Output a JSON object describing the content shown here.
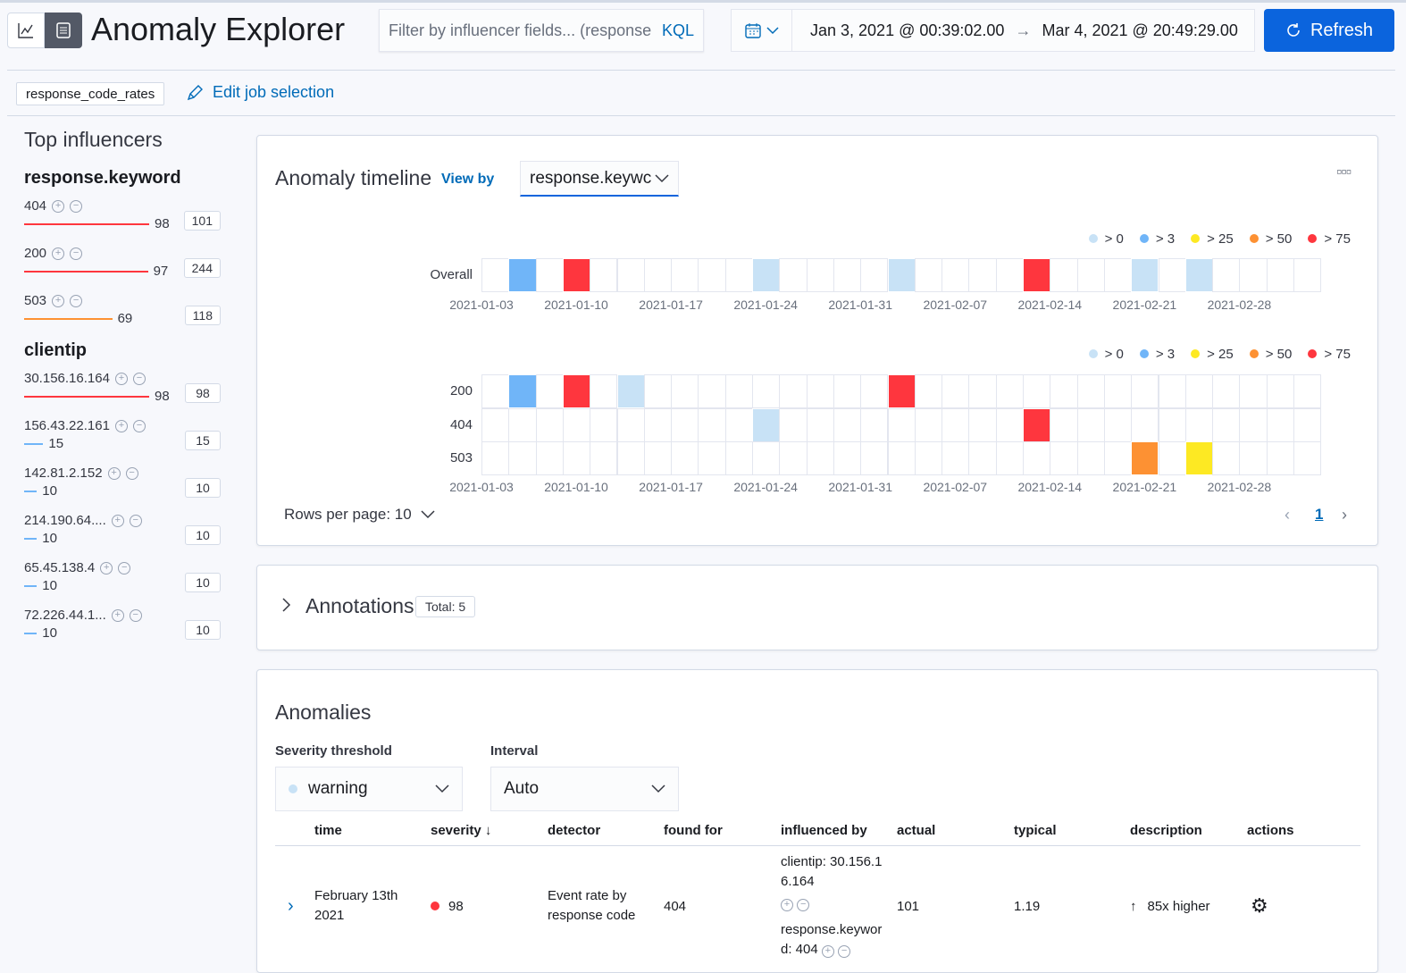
{
  "header": {
    "title": "Anomaly Explorer",
    "view_icons": [
      "single-metric-viewer-icon",
      "anomaly-explorer-icon"
    ],
    "filter_placeholder": "Filter by influencer fields... (response",
    "kql": "KQL",
    "date_start": "Jan 3, 2021 @ 00:39:02.00",
    "date_arrow": "→",
    "date_end": "Mar 4, 2021 @ 20:49:29.00",
    "refresh": "Refresh"
  },
  "job": {
    "id": "response_code_rates",
    "edit": "Edit job selection"
  },
  "influencers": {
    "title": "Top influencers",
    "groups": [
      {
        "field": "response.keyword",
        "items": [
          {
            "value": "404",
            "score": 98,
            "count": "101",
            "color": "#fe363e"
          },
          {
            "value": "200",
            "score": 97,
            "count": "244",
            "color": "#fe363e"
          },
          {
            "value": "503",
            "score": 69,
            "count": "118",
            "color": "#fd9133"
          }
        ]
      },
      {
        "field": "clientip",
        "items": [
          {
            "value": "30.156.16.164",
            "score": 98,
            "count": "98",
            "color": "#fe363e"
          },
          {
            "value": "156.43.22.161",
            "score": 15,
            "count": "15",
            "color": "#70b5f8"
          },
          {
            "value": "142.81.2.152",
            "score": 10,
            "count": "10",
            "color": "#70b5f8"
          },
          {
            "value": "214.190.64....",
            "score": 10,
            "count": "10",
            "color": "#70b5f8"
          },
          {
            "value": "65.45.138.4",
            "score": 10,
            "count": "10",
            "color": "#70b5f8"
          },
          {
            "value": "72.226.44.1...",
            "score": 10,
            "count": "10",
            "color": "#70b5f8"
          }
        ]
      }
    ]
  },
  "timeline": {
    "title": "Anomaly timeline",
    "view_by_label": "View by",
    "view_by_value": "response.keywc",
    "legend": [
      {
        "label": "> 0",
        "color": "#c8e2f6"
      },
      {
        "label": "> 3",
        "color": "#70b5f8"
      },
      {
        "label": "> 25",
        "color": "#fde923"
      },
      {
        "label": "> 50",
        "color": "#fd9133"
      },
      {
        "label": "> 75",
        "color": "#fe363e"
      }
    ],
    "ticks": [
      "2021-01-03",
      "2021-01-10",
      "2021-01-17",
      "2021-01-24",
      "2021-01-31",
      "2021-02-07",
      "2021-02-14",
      "2021-02-21",
      "2021-02-28"
    ],
    "overall": {
      "label": "Overall",
      "cells": [
        {
          "date": "2021-01-05",
          "level": 1
        },
        {
          "date": "2021-01-09",
          "level": 4
        },
        {
          "date": "2021-01-23",
          "level": 0
        },
        {
          "date": "2021-02-02",
          "level": 0
        },
        {
          "date": "2021-02-12",
          "level": 4
        },
        {
          "date": "2021-02-20",
          "level": 0
        },
        {
          "date": "2021-02-24",
          "level": 0
        }
      ]
    },
    "lanes": [
      {
        "label": "200",
        "cells": [
          {
            "date": "2021-01-05",
            "level": 1
          },
          {
            "date": "2021-01-09",
            "level": 4
          },
          {
            "date": "2021-01-13",
            "level": 0
          },
          {
            "date": "2021-02-02",
            "level": 4
          }
        ]
      },
      {
        "label": "404",
        "cells": [
          {
            "date": "2021-01-23",
            "level": 0
          },
          {
            "date": "2021-02-12",
            "level": 4
          }
        ]
      },
      {
        "label": "503",
        "cells": [
          {
            "date": "2021-02-20",
            "level": 3
          },
          {
            "date": "2021-02-24",
            "level": 2
          }
        ]
      }
    ],
    "rows_per_page": "Rows per page: 10",
    "page": "1"
  },
  "annotations": {
    "title": "Annotations",
    "total": "Total: 5"
  },
  "anomalies": {
    "title": "Anomalies",
    "severity_label": "Severity threshold",
    "severity_value": "warning",
    "interval_label": "Interval",
    "interval_value": "Auto",
    "columns": [
      "time",
      "severity",
      "detector",
      "found for",
      "influenced by",
      "actual",
      "typical",
      "description",
      "actions"
    ],
    "rows": [
      {
        "time": "February 13th 2021",
        "severity": "98",
        "detector": "Event rate by response code",
        "found_for": "404",
        "influencer1": "clientip: 30.156.16.164",
        "influencer2": "response.keyword: 404",
        "actual": "101",
        "typical": "1.19",
        "description": "85x higher"
      }
    ]
  }
}
